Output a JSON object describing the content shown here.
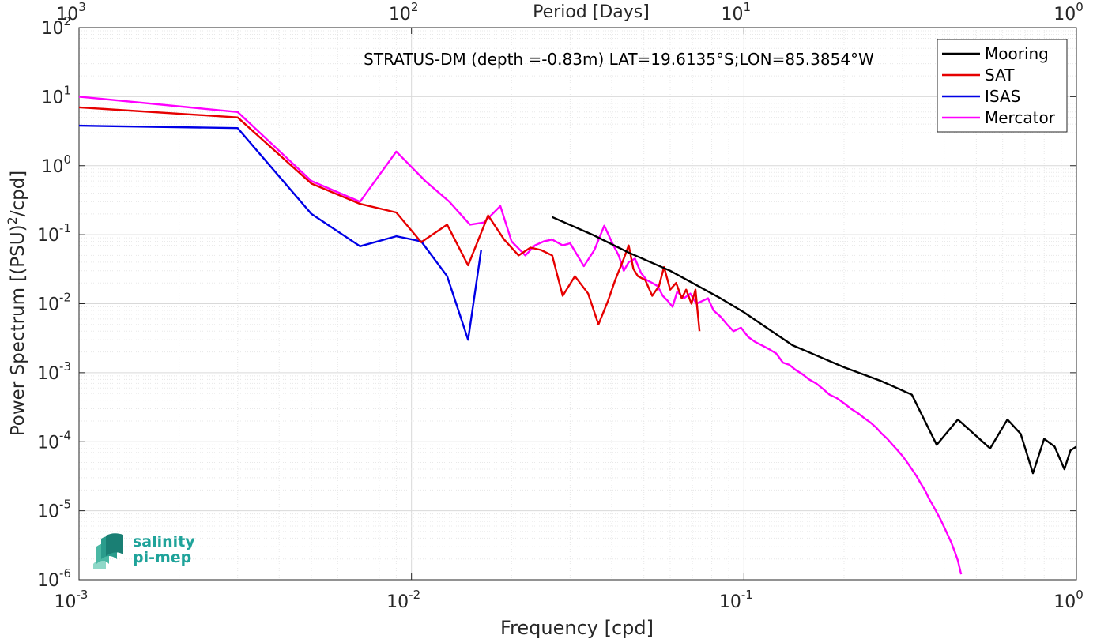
{
  "logo": {
    "line1": "salinity",
    "line2": "pi-mep"
  },
  "chart_data": {
    "type": "line",
    "title": "STRATUS-DM (depth =-0.83m) LAT=19.6135°S;LON=85.3854°W",
    "xlabel": "Frequency [cpd]",
    "ylabel": "Power Spectrum [(PSU)²/cpd]",
    "top_xlabel": "Period [Days]",
    "x_scale": "log",
    "y_scale": "log",
    "xlim": [
      0.001,
      1
    ],
    "ylim": [
      1e-06,
      100
    ],
    "grid": true,
    "legend_position": "top-right",
    "x_tick_labels": [
      "10^-3",
      "10^-2",
      "10^-1",
      "10^0"
    ],
    "top_tick_labels": [
      "10^3",
      "10^2",
      "10^1",
      "10^0"
    ],
    "y_tick_labels": [
      "10^-6",
      "10^-5",
      "10^-4",
      "10^-3",
      "10^-2",
      "10^-1",
      "10^0",
      "10^1",
      "10^2"
    ],
    "series": [
      {
        "name": "Mooring",
        "color": "#000000",
        "points": [
          [
            0.0265,
            0.18
          ],
          [
            0.035,
            0.1
          ],
          [
            0.045,
            0.055
          ],
          [
            0.06,
            0.03
          ],
          [
            0.085,
            0.012
          ],
          [
            0.1,
            0.0075
          ],
          [
            0.14,
            0.0025
          ],
          [
            0.2,
            0.0012
          ],
          [
            0.26,
            0.00075
          ],
          [
            0.32,
            0.00048
          ],
          [
            0.38,
            9e-05
          ],
          [
            0.44,
            0.00021
          ],
          [
            0.55,
            8e-05
          ],
          [
            0.62,
            0.00021
          ],
          [
            0.68,
            0.00013
          ],
          [
            0.74,
            3.5e-05
          ],
          [
            0.8,
            0.00011
          ],
          [
            0.86,
            8.5e-05
          ],
          [
            0.92,
            4e-05
          ],
          [
            0.96,
            7.5e-05
          ],
          [
            1.0,
            8.5e-05
          ]
        ]
      },
      {
        "name": "SAT",
        "color": "#e60000",
        "points": [
          [
            0.001,
            7
          ],
          [
            0.003,
            5
          ],
          [
            0.005,
            0.55
          ],
          [
            0.007,
            0.28
          ],
          [
            0.009,
            0.21
          ],
          [
            0.0107,
            0.078
          ],
          [
            0.0128,
            0.14
          ],
          [
            0.0148,
            0.036
          ],
          [
            0.017,
            0.19
          ],
          [
            0.019,
            0.085
          ],
          [
            0.021,
            0.05
          ],
          [
            0.0228,
            0.065
          ],
          [
            0.0245,
            0.06
          ],
          [
            0.0265,
            0.05
          ],
          [
            0.0285,
            0.013
          ],
          [
            0.031,
            0.025
          ],
          [
            0.034,
            0.014
          ],
          [
            0.0365,
            0.005
          ],
          [
            0.039,
            0.011
          ],
          [
            0.041,
            0.022
          ],
          [
            0.0435,
            0.045
          ],
          [
            0.045,
            0.07
          ],
          [
            0.0465,
            0.032
          ],
          [
            0.048,
            0.025
          ],
          [
            0.0505,
            0.022
          ],
          [
            0.053,
            0.013
          ],
          [
            0.0555,
            0.018
          ],
          [
            0.0575,
            0.034
          ],
          [
            0.06,
            0.016
          ],
          [
            0.0625,
            0.02
          ],
          [
            0.065,
            0.012
          ],
          [
            0.067,
            0.016
          ],
          [
            0.0695,
            0.01
          ],
          [
            0.0715,
            0.016
          ],
          [
            0.0735,
            0.004
          ]
        ]
      },
      {
        "name": "ISAS",
        "color": "#0000e6",
        "points": [
          [
            0.001,
            3.8
          ],
          [
            0.003,
            3.5
          ],
          [
            0.005,
            0.2
          ],
          [
            0.007,
            0.068
          ],
          [
            0.009,
            0.095
          ],
          [
            0.0107,
            0.08
          ],
          [
            0.0128,
            0.025
          ],
          [
            0.0148,
            0.003
          ],
          [
            0.0162,
            0.06
          ]
        ]
      },
      {
        "name": "Mercator",
        "color": "#ff00ff",
        "points": [
          [
            0.001,
            10
          ],
          [
            0.003,
            6
          ],
          [
            0.005,
            0.6
          ],
          [
            0.007,
            0.3
          ],
          [
            0.009,
            1.6
          ],
          [
            0.011,
            0.6
          ],
          [
            0.013,
            0.3
          ],
          [
            0.015,
            0.14
          ],
          [
            0.0165,
            0.15
          ],
          [
            0.0185,
            0.26
          ],
          [
            0.02,
            0.08
          ],
          [
            0.022,
            0.05
          ],
          [
            0.0235,
            0.07
          ],
          [
            0.025,
            0.08
          ],
          [
            0.0265,
            0.085
          ],
          [
            0.0285,
            0.07
          ],
          [
            0.03,
            0.075
          ],
          [
            0.033,
            0.035
          ],
          [
            0.0355,
            0.06
          ],
          [
            0.038,
            0.135
          ],
          [
            0.0405,
            0.07
          ],
          [
            0.042,
            0.05
          ],
          [
            0.0435,
            0.03
          ],
          [
            0.045,
            0.04
          ],
          [
            0.047,
            0.045
          ],
          [
            0.049,
            0.028
          ],
          [
            0.051,
            0.022
          ],
          [
            0.053,
            0.02
          ],
          [
            0.055,
            0.018
          ],
          [
            0.057,
            0.013
          ],
          [
            0.059,
            0.011
          ],
          [
            0.061,
            0.009
          ],
          [
            0.063,
            0.015
          ],
          [
            0.066,
            0.012
          ],
          [
            0.069,
            0.014
          ],
          [
            0.072,
            0.01
          ],
          [
            0.075,
            0.011
          ],
          [
            0.078,
            0.012
          ],
          [
            0.081,
            0.008
          ],
          [
            0.085,
            0.0065
          ],
          [
            0.089,
            0.005
          ],
          [
            0.093,
            0.004
          ],
          [
            0.098,
            0.0045
          ],
          [
            0.103,
            0.0033
          ],
          [
            0.108,
            0.0028
          ],
          [
            0.113,
            0.0025
          ],
          [
            0.119,
            0.0022
          ],
          [
            0.125,
            0.0019
          ],
          [
            0.131,
            0.0014
          ],
          [
            0.137,
            0.0013
          ],
          [
            0.143,
            0.0011
          ],
          [
            0.15,
            0.00095
          ],
          [
            0.157,
            0.0008
          ],
          [
            0.165,
            0.0007
          ],
          [
            0.173,
            0.00058
          ],
          [
            0.181,
            0.00048
          ],
          [
            0.19,
            0.00043
          ],
          [
            0.2,
            0.00036
          ],
          [
            0.21,
            0.0003
          ],
          [
            0.22,
            0.00026
          ],
          [
            0.23,
            0.00022
          ],
          [
            0.24,
            0.00019
          ],
          [
            0.25,
            0.00016
          ],
          [
            0.26,
            0.00013
          ],
          [
            0.27,
            0.00011
          ],
          [
            0.28,
            9e-05
          ],
          [
            0.29,
            7.5e-05
          ],
          [
            0.3,
            6.2e-05
          ],
          [
            0.31,
            5e-05
          ],
          [
            0.32,
            4e-05
          ],
          [
            0.33,
            3.2e-05
          ],
          [
            0.34,
            2.5e-05
          ],
          [
            0.35,
            2e-05
          ],
          [
            0.36,
            1.5e-05
          ],
          [
            0.37,
            1.2e-05
          ],
          [
            0.38,
            9.5e-06
          ],
          [
            0.39,
            7.5e-06
          ],
          [
            0.4,
            5.8e-06
          ],
          [
            0.41,
            4.5e-06
          ],
          [
            0.42,
            3.5e-06
          ],
          [
            0.43,
            2.6e-06
          ],
          [
            0.44,
            1.9e-06
          ],
          [
            0.45,
            1.2e-06
          ]
        ]
      }
    ]
  }
}
